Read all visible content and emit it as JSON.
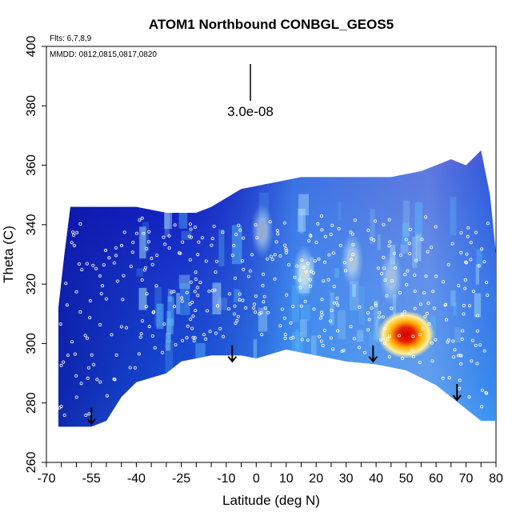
{
  "chart_data": {
    "type": "heatmap",
    "title": "ATOM1 Northbound CONBGL_GEOS5",
    "flights_note": "Flts: 6,7,8,9",
    "dates_note": "MMDD: 0812,0815,0817,0820",
    "xlabel": "Latitude (deg N)",
    "ylabel": "Theta (C)",
    "xlim": [
      -70,
      80
    ],
    "ylim": [
      260,
      400
    ],
    "x_ticks": [
      -70,
      -55,
      -40,
      -25,
      -10,
      0,
      10,
      20,
      30,
      40,
      50,
      60,
      70,
      80
    ],
    "y_ticks": [
      260,
      280,
      300,
      320,
      340,
      360,
      380,
      400
    ],
    "scale_label": "3.0e-08",
    "color_scale": [
      "#5a00b4",
      "#0a14a0",
      "#1e3cdc",
      "#2c7ef0",
      "#5ab8f8",
      "#a8dcf8",
      "#e8eef0",
      "#fff0a0",
      "#ffd000",
      "#f06010",
      "#d00000"
    ],
    "upper_boundary": [
      [
        -66,
        312
      ],
      [
        -64,
        330
      ],
      [
        -62,
        346
      ],
      [
        -50,
        346
      ],
      [
        -40,
        346
      ],
      [
        -30,
        344
      ],
      [
        -20,
        344
      ],
      [
        -15,
        346
      ],
      [
        -5,
        352
      ],
      [
        5,
        354
      ],
      [
        15,
        356
      ],
      [
        25,
        356
      ],
      [
        35,
        356
      ],
      [
        45,
        356
      ],
      [
        55,
        358
      ],
      [
        60,
        360
      ],
      [
        65,
        362
      ],
      [
        70,
        360
      ],
      [
        75,
        365
      ],
      [
        78,
        350
      ],
      [
        80,
        330
      ],
      [
        80,
        310
      ]
    ],
    "lower_boundary": [
      [
        -66,
        272
      ],
      [
        -55,
        272
      ],
      [
        -50,
        274
      ],
      [
        -45,
        282
      ],
      [
        -40,
        287
      ],
      [
        -30,
        290
      ],
      [
        -25,
        294
      ],
      [
        -15,
        296
      ],
      [
        -5,
        296
      ],
      [
        0,
        295
      ],
      [
        10,
        298
      ],
      [
        20,
        296
      ],
      [
        30,
        294
      ],
      [
        40,
        293
      ],
      [
        50,
        291
      ],
      [
        60,
        286
      ],
      [
        70,
        278
      ],
      [
        75,
        274
      ],
      [
        80,
        274
      ]
    ],
    "anomalies": [
      {
        "lat": 50,
        "theta": 303,
        "level": 1.0
      },
      {
        "lat": 16,
        "theta": 324,
        "level": 0.7
      },
      {
        "lat": 32,
        "theta": 328,
        "level": 0.6
      },
      {
        "lat": 2,
        "theta": 338,
        "level": 0.55
      },
      {
        "lat": 45,
        "theta": 322,
        "level": 0.5
      }
    ],
    "profile_arrows": [
      {
        "lat": -55,
        "theta": 273
      },
      {
        "lat": -8,
        "theta": 294
      },
      {
        "lat": 39,
        "theta": 294
      },
      {
        "lat": 67,
        "theta": 281
      }
    ]
  }
}
